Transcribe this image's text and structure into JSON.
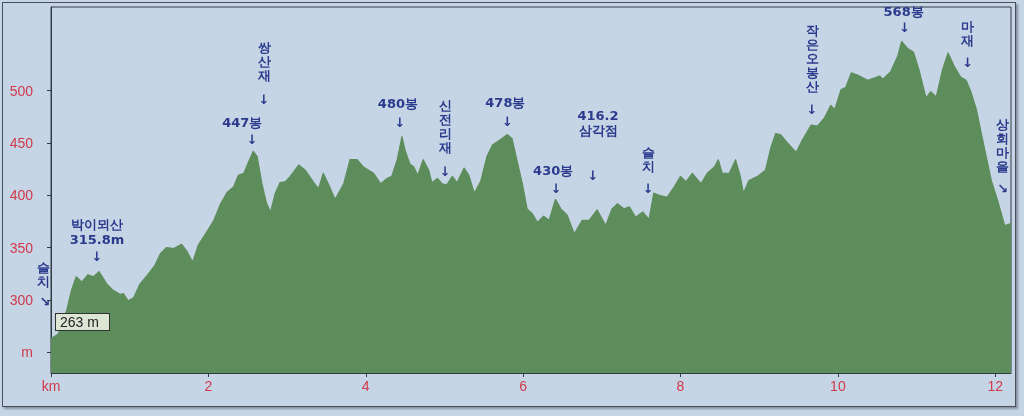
{
  "chart_data": {
    "type": "area",
    "color": "#5e8d5c",
    "marker": "none",
    "x": [
      0,
      0.09,
      0.2,
      0.26,
      0.32,
      0.39,
      0.47,
      0.54,
      0.61,
      0.71,
      0.79,
      0.88,
      0.92,
      0.98,
      1.05,
      1.13,
      1.24,
      1.32,
      1.39,
      1.47,
      1.56,
      1.66,
      1.73,
      1.8,
      1.87,
      1.98,
      2.07,
      2.15,
      2.24,
      2.32,
      2.38,
      2.45,
      2.5,
      2.57,
      2.62,
      2.68,
      2.74,
      2.79,
      2.85,
      2.91,
      2.98,
      3.04,
      3.15,
      3.23,
      3.34,
      3.4,
      3.46,
      3.53,
      3.61,
      3.72,
      3.8,
      3.89,
      3.97,
      4.1,
      4.19,
      4.27,
      4.33,
      4.4,
      4.46,
      4.5,
      4.56,
      4.61,
      4.66,
      4.73,
      4.8,
      4.84,
      4.91,
      4.97,
      5.03,
      5.1,
      5.16,
      5.25,
      5.31,
      5.38,
      5.46,
      5.54,
      5.61,
      5.71,
      5.8,
      5.86,
      5.92,
      5.99,
      6.05,
      6.12,
      6.18,
      6.26,
      6.33,
      6.41,
      6.48,
      6.56,
      6.65,
      6.75,
      6.84,
      6.94,
      7.05,
      7.13,
      7.2,
      7.28,
      7.35,
      7.43,
      7.52,
      7.6,
      7.66,
      7.73,
      7.83,
      7.92,
      8,
      8.07,
      8.15,
      8.26,
      8.34,
      8.43,
      8.48,
      8.53,
      8.62,
      8.7,
      8.76,
      8.8,
      8.87,
      8.98,
      9.08,
      9.15,
      9.21,
      9.27,
      9.36,
      9.47,
      9.55,
      9.66,
      9.74,
      9.83,
      9.91,
      9.96,
      10.04,
      10.1,
      10.17,
      10.25,
      10.38,
      10.46,
      10.53,
      10.57,
      10.67,
      10.76,
      10.81,
      10.89,
      10.96,
      11.03,
      11.12,
      11.18,
      11.25,
      11.33,
      11.4,
      11.48,
      11.56,
      11.63,
      11.69,
      11.76,
      11.84,
      11.95,
      12.03,
      12.12,
      12.2
    ],
    "values": [
      263,
      267,
      290,
      309,
      322,
      317,
      324,
      322,
      327,
      315,
      309,
      305,
      306,
      299,
      302,
      315,
      325,
      333,
      344,
      350,
      349,
      353,
      346,
      336,
      352,
      365,
      376,
      391,
      403,
      408,
      419,
      421,
      430,
      442,
      437,
      411,
      392,
      384,
      402,
      412,
      413,
      418,
      429,
      424,
      412,
      406,
      421,
      410,
      396,
      411,
      434,
      434,
      427,
      421,
      411,
      416,
      418,
      434,
      456,
      443,
      430,
      427,
      419,
      434,
      424,
      412,
      416,
      411,
      410,
      418,
      412,
      426,
      419,
      402,
      413,
      437,
      448,
      453,
      458,
      454,
      434,
      411,
      387,
      382,
      374,
      380,
      376,
      396,
      387,
      381,
      363,
      376,
      376,
      386,
      371,
      387,
      392,
      387,
      389,
      379,
      384,
      377,
      402,
      400,
      398,
      408,
      418,
      413,
      421,
      411,
      421,
      427,
      434,
      421,
      421,
      434,
      418,
      402,
      414,
      418,
      424,
      446,
      459,
      458,
      450,
      441,
      453,
      467,
      466,
      474,
      486,
      482,
      501,
      503,
      517,
      515,
      510,
      512,
      514,
      511,
      518,
      533,
      547,
      540,
      537,
      520,
      493,
      499,
      494,
      520,
      536,
      523,
      513,
      510,
      499,
      482,
      453,
      414,
      395,
      371,
      373
    ],
    "xlim": [
      0,
      12.2
    ],
    "xticks": [
      {
        "value": 0,
        "label": "km"
      },
      2,
      4,
      6,
      8,
      10,
      12
    ],
    "ylim": [
      230,
      580
    ],
    "yticks": [
      {
        "value": 250,
        "label": "m"
      },
      300,
      350,
      400,
      450,
      500
    ],
    "annotations": [
      {
        "text": "슬치\n↘",
        "x": 0,
        "y": 263
      },
      {
        "text": "263 m",
        "x": 0,
        "y": 263
      },
      {
        "text": "박이뫼산\n315.8m\n↓",
        "x": 0.61,
        "y": 327
      },
      {
        "text": "447봉\n↓",
        "x": 2.57,
        "y": 442
      },
      "쌍산재\n↓",
      {
        "text": "480봉\n↓",
        "x": 4.46,
        "y": 456
      },
      {
        "text": "신전리재\n↓",
        "x": 5.01,
        "y": 410
      },
      {
        "text": "478봉\n↓",
        "x": 5.8,
        "y": 458
      },
      {
        "text": "430봉\n↓",
        "x": 6.42,
        "y": 396
      },
      "416.2\n삼각점\n↓",
      {
        "text": "슬치\n↓",
        "x": 7.59,
        "y": 378
      },
      {
        "text": "작은오봉산\n↓",
        "x": 9.67,
        "y": 467
      },
      {
        "text": "568봉\n↓",
        "x": 10.81,
        "y": 547
      },
      {
        "text": "마재\n↓",
        "x": 11.65,
        "y": 506
      },
      {
        "text": "상회마을\n↘",
        "x": 12.12,
        "y": 371
      }
    ]
  }
}
